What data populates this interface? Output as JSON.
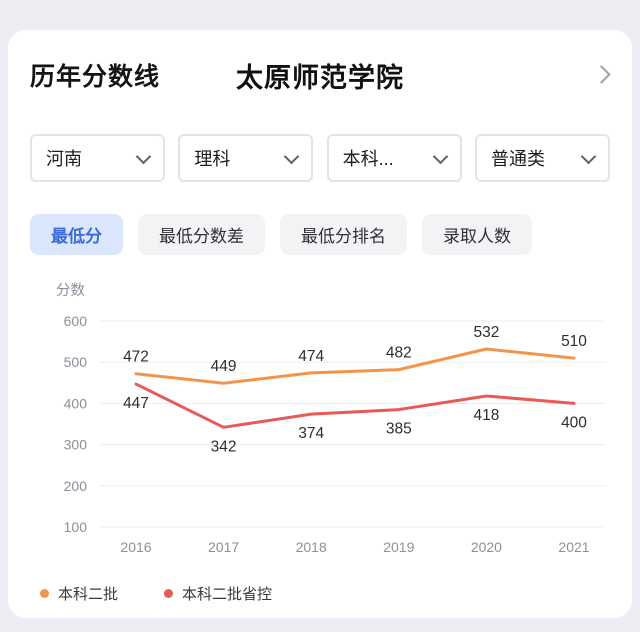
{
  "page": {
    "title": "历年分数线",
    "school_name": "太原师范学院"
  },
  "filters": [
    {
      "label": "河南"
    },
    {
      "label": "理科"
    },
    {
      "label": "本科..."
    },
    {
      "label": "普通类"
    }
  ],
  "tabs": [
    {
      "label": "最低分",
      "active": true
    },
    {
      "label": "最低分数差",
      "active": false
    },
    {
      "label": "最低分排名",
      "active": false
    },
    {
      "label": "录取人数",
      "active": false
    }
  ],
  "chart_data": {
    "type": "line",
    "title": "",
    "ylabel": "分数",
    "xlabel": "",
    "categories": [
      "2016",
      "2017",
      "2018",
      "2019",
      "2020",
      "2021"
    ],
    "yticks": [
      600,
      500,
      400,
      300,
      200,
      100
    ],
    "ylim": [
      100,
      600
    ],
    "grid": true,
    "legend_position": "bottom",
    "series": [
      {
        "name": "本科二批",
        "color": "#F2954C",
        "values": [
          472,
          449,
          474,
          482,
          532,
          510
        ]
      },
      {
        "name": "本科二批省控",
        "color": "#E85A57",
        "values": [
          447,
          342,
          374,
          385,
          418,
          400
        ]
      }
    ]
  }
}
